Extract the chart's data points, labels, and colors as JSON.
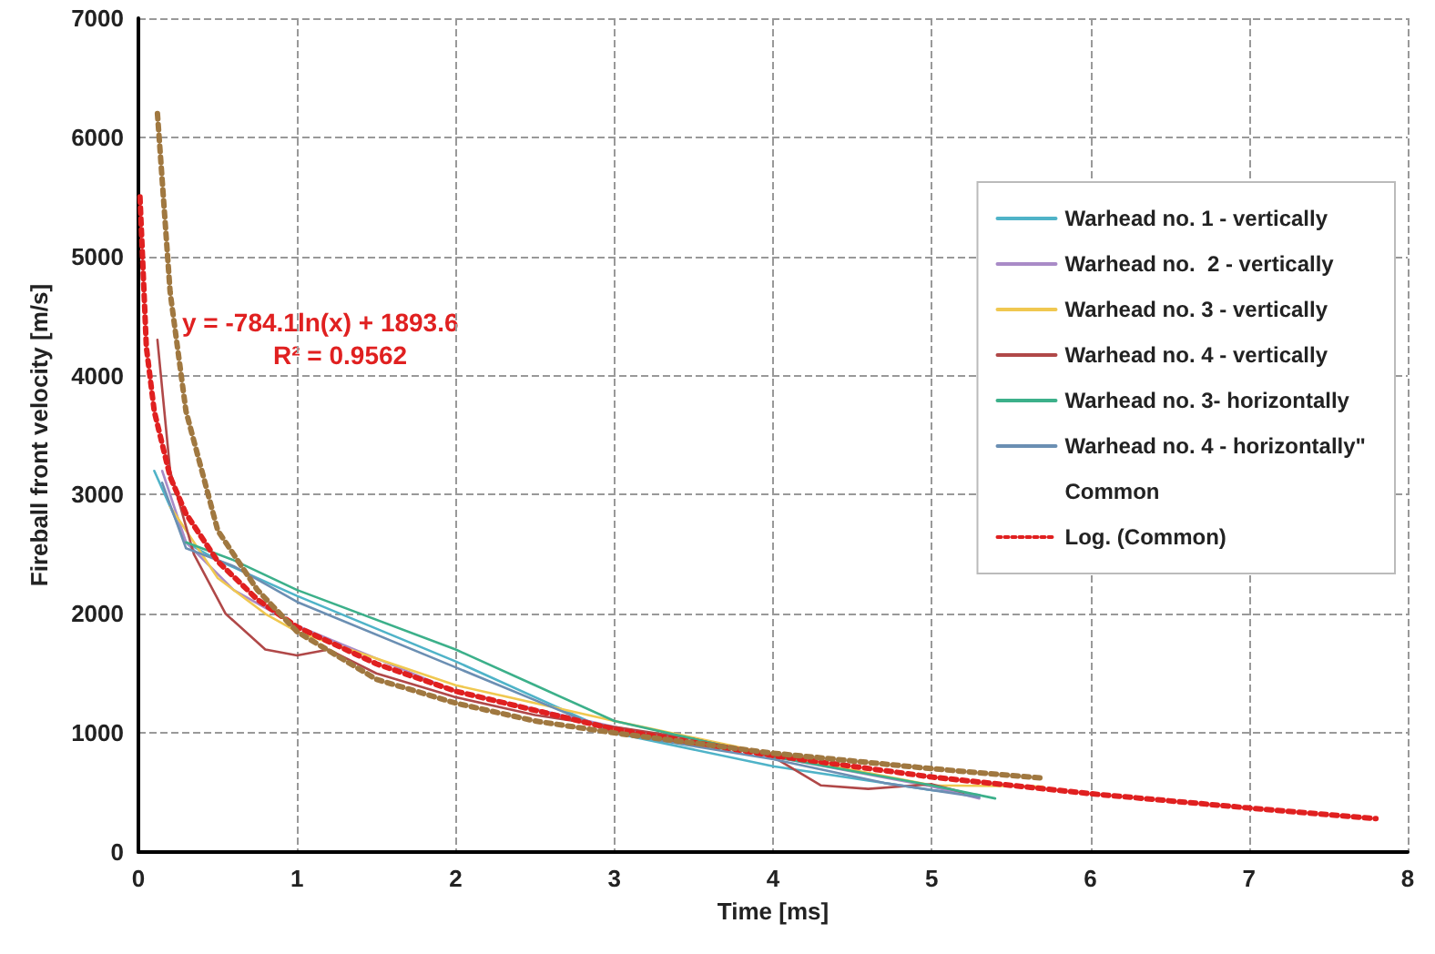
{
  "chart_data": {
    "type": "line",
    "xlabel": "Time [ms]",
    "ylabel": "Fireball front velocity [m/s]",
    "xlim": [
      0,
      8
    ],
    "xticks": [
      0,
      1,
      2,
      3,
      4,
      5,
      6,
      7,
      8
    ],
    "ylim": [
      0,
      7000
    ],
    "yticks": [
      0,
      1000,
      2000,
      3000,
      4000,
      5000,
      6000,
      7000
    ],
    "grid": true,
    "legend": "top right",
    "marker": "none",
    "annotations": [
      "y = -784.1ln(x) + 1893.6",
      "R² = 0.9562"
    ],
    "series": [
      {
        "name": "Warhead no. 1 - vertically",
        "color": "#4fb3c8",
        "x": [
          0.1,
          0.3,
          0.5,
          1,
          2,
          3,
          4,
          5,
          5.3
        ],
        "values": [
          3200,
          2600,
          2450,
          2150,
          1600,
          1000,
          720,
          520,
          480
        ]
      },
      {
        "name": "Warhead no.  2 - vertically",
        "color": "#a98bc7",
        "x": [
          0.15,
          0.3,
          0.6,
          1,
          2,
          3,
          4,
          5,
          5.3
        ],
        "values": [
          3200,
          2600,
          2200,
          1900,
          1350,
          1050,
          800,
          550,
          450
        ]
      },
      {
        "name": "Warhead no. 3 - vertically",
        "color": "#f0c850",
        "x": [
          0.2,
          0.5,
          0.8,
          1,
          2,
          3,
          4,
          5,
          5.7
        ],
        "values": [
          2900,
          2300,
          2000,
          1850,
          1400,
          1100,
          820,
          560,
          550
        ]
      },
      {
        "name": "Warhead no. 4 - vertically",
        "color": "#b04848",
        "x": [
          0.12,
          0.2,
          0.35,
          0.55,
          0.8,
          1,
          1.2,
          1.5,
          2,
          2.5,
          3,
          3.5,
          4,
          4.3,
          4.6,
          5,
          5.2
        ],
        "values": [
          4300,
          3200,
          2500,
          2000,
          1700,
          1650,
          1700,
          1500,
          1300,
          1150,
          1050,
          950,
          800,
          560,
          530,
          570,
          500
        ]
      },
      {
        "name": "Warhead no. 3- horizontally",
        "color": "#3cb08a",
        "x": [
          0.3,
          0.6,
          1,
          2,
          2.5,
          3,
          4,
          5,
          5.4
        ],
        "values": [
          2600,
          2450,
          2200,
          1700,
          1400,
          1100,
          800,
          560,
          450
        ]
      },
      {
        "name": "Warhead no. 4 - horizontally\"",
        "color": "#6b8fb3",
        "x": [
          0.15,
          0.3,
          0.6,
          1,
          2,
          3,
          4,
          4.7,
          5.3
        ],
        "values": [
          3100,
          2550,
          2400,
          2100,
          1550,
          1000,
          780,
          580,
          460
        ]
      },
      {
        "name": "Common"
      },
      {
        "name": "Log. (Common)",
        "color": "#e02020",
        "line_style": "dotted",
        "x": [
          0.01,
          0.05,
          0.1,
          0.2,
          0.3,
          0.5,
          0.75,
          1,
          1.5,
          2,
          3,
          4,
          5,
          6,
          7,
          7.8
        ],
        "values": [
          5500,
          4240,
          3700,
          3150,
          2840,
          2440,
          2120,
          1890,
          1580,
          1350,
          1030,
          810,
          630,
          490,
          370,
          280
        ]
      },
      {
        "color": "#a07840",
        "line_style": "dotted",
        "x": [
          0.12,
          0.2,
          0.3,
          0.5,
          0.75,
          1,
          1.5,
          2,
          2.5,
          3,
          4,
          5,
          5.7
        ],
        "values": [
          6200,
          4700,
          3700,
          2700,
          2200,
          1850,
          1450,
          1250,
          1100,
          1000,
          830,
          700,
          620
        ]
      }
    ]
  }
}
